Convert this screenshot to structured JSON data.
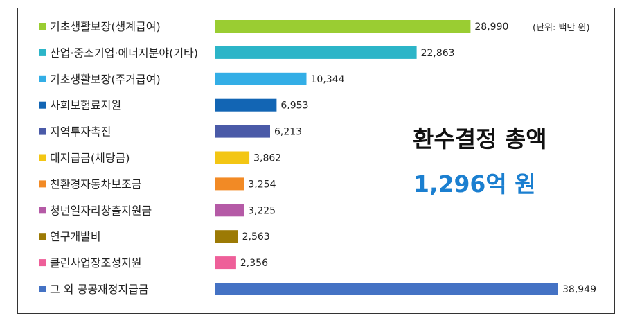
{
  "chart_data": {
    "type": "bar",
    "orientation": "horizontal",
    "unit_note": "(단위: 백만 원)",
    "categories": [
      "기초생활보장(생계급여)",
      "산업·중소기업·에너지분야(기타)",
      "기초생활보장(주거급여)",
      "사회보험료지원",
      "지역투자촉진",
      "대지급금(체당금)",
      "친환경자동차보조금",
      "청년일자리창출지원금",
      "연구개발비",
      "클린사업장조성지원",
      "그 외 공공재정지급금"
    ],
    "values": [
      28990,
      22863,
      10344,
      6953,
      6213,
      3862,
      3254,
      3225,
      2563,
      2356,
      38949
    ],
    "value_labels": [
      "28,990",
      "22,863",
      "10,344",
      "6,953",
      "6,213",
      "3,862",
      "3,254",
      "3,225",
      "2,563",
      "2,356",
      "38,949"
    ],
    "colors": [
      "#9acd32",
      "#2cb5c8",
      "#33aee6",
      "#1265b4",
      "#4a5aa8",
      "#f3c614",
      "#f28a25",
      "#b55aa6",
      "#9c7a05",
      "#ee5f99",
      "#4472c4"
    ],
    "grid": false,
    "legend": "none"
  },
  "summary": {
    "title": "환수결정 총액",
    "value": "1,296억 원"
  }
}
